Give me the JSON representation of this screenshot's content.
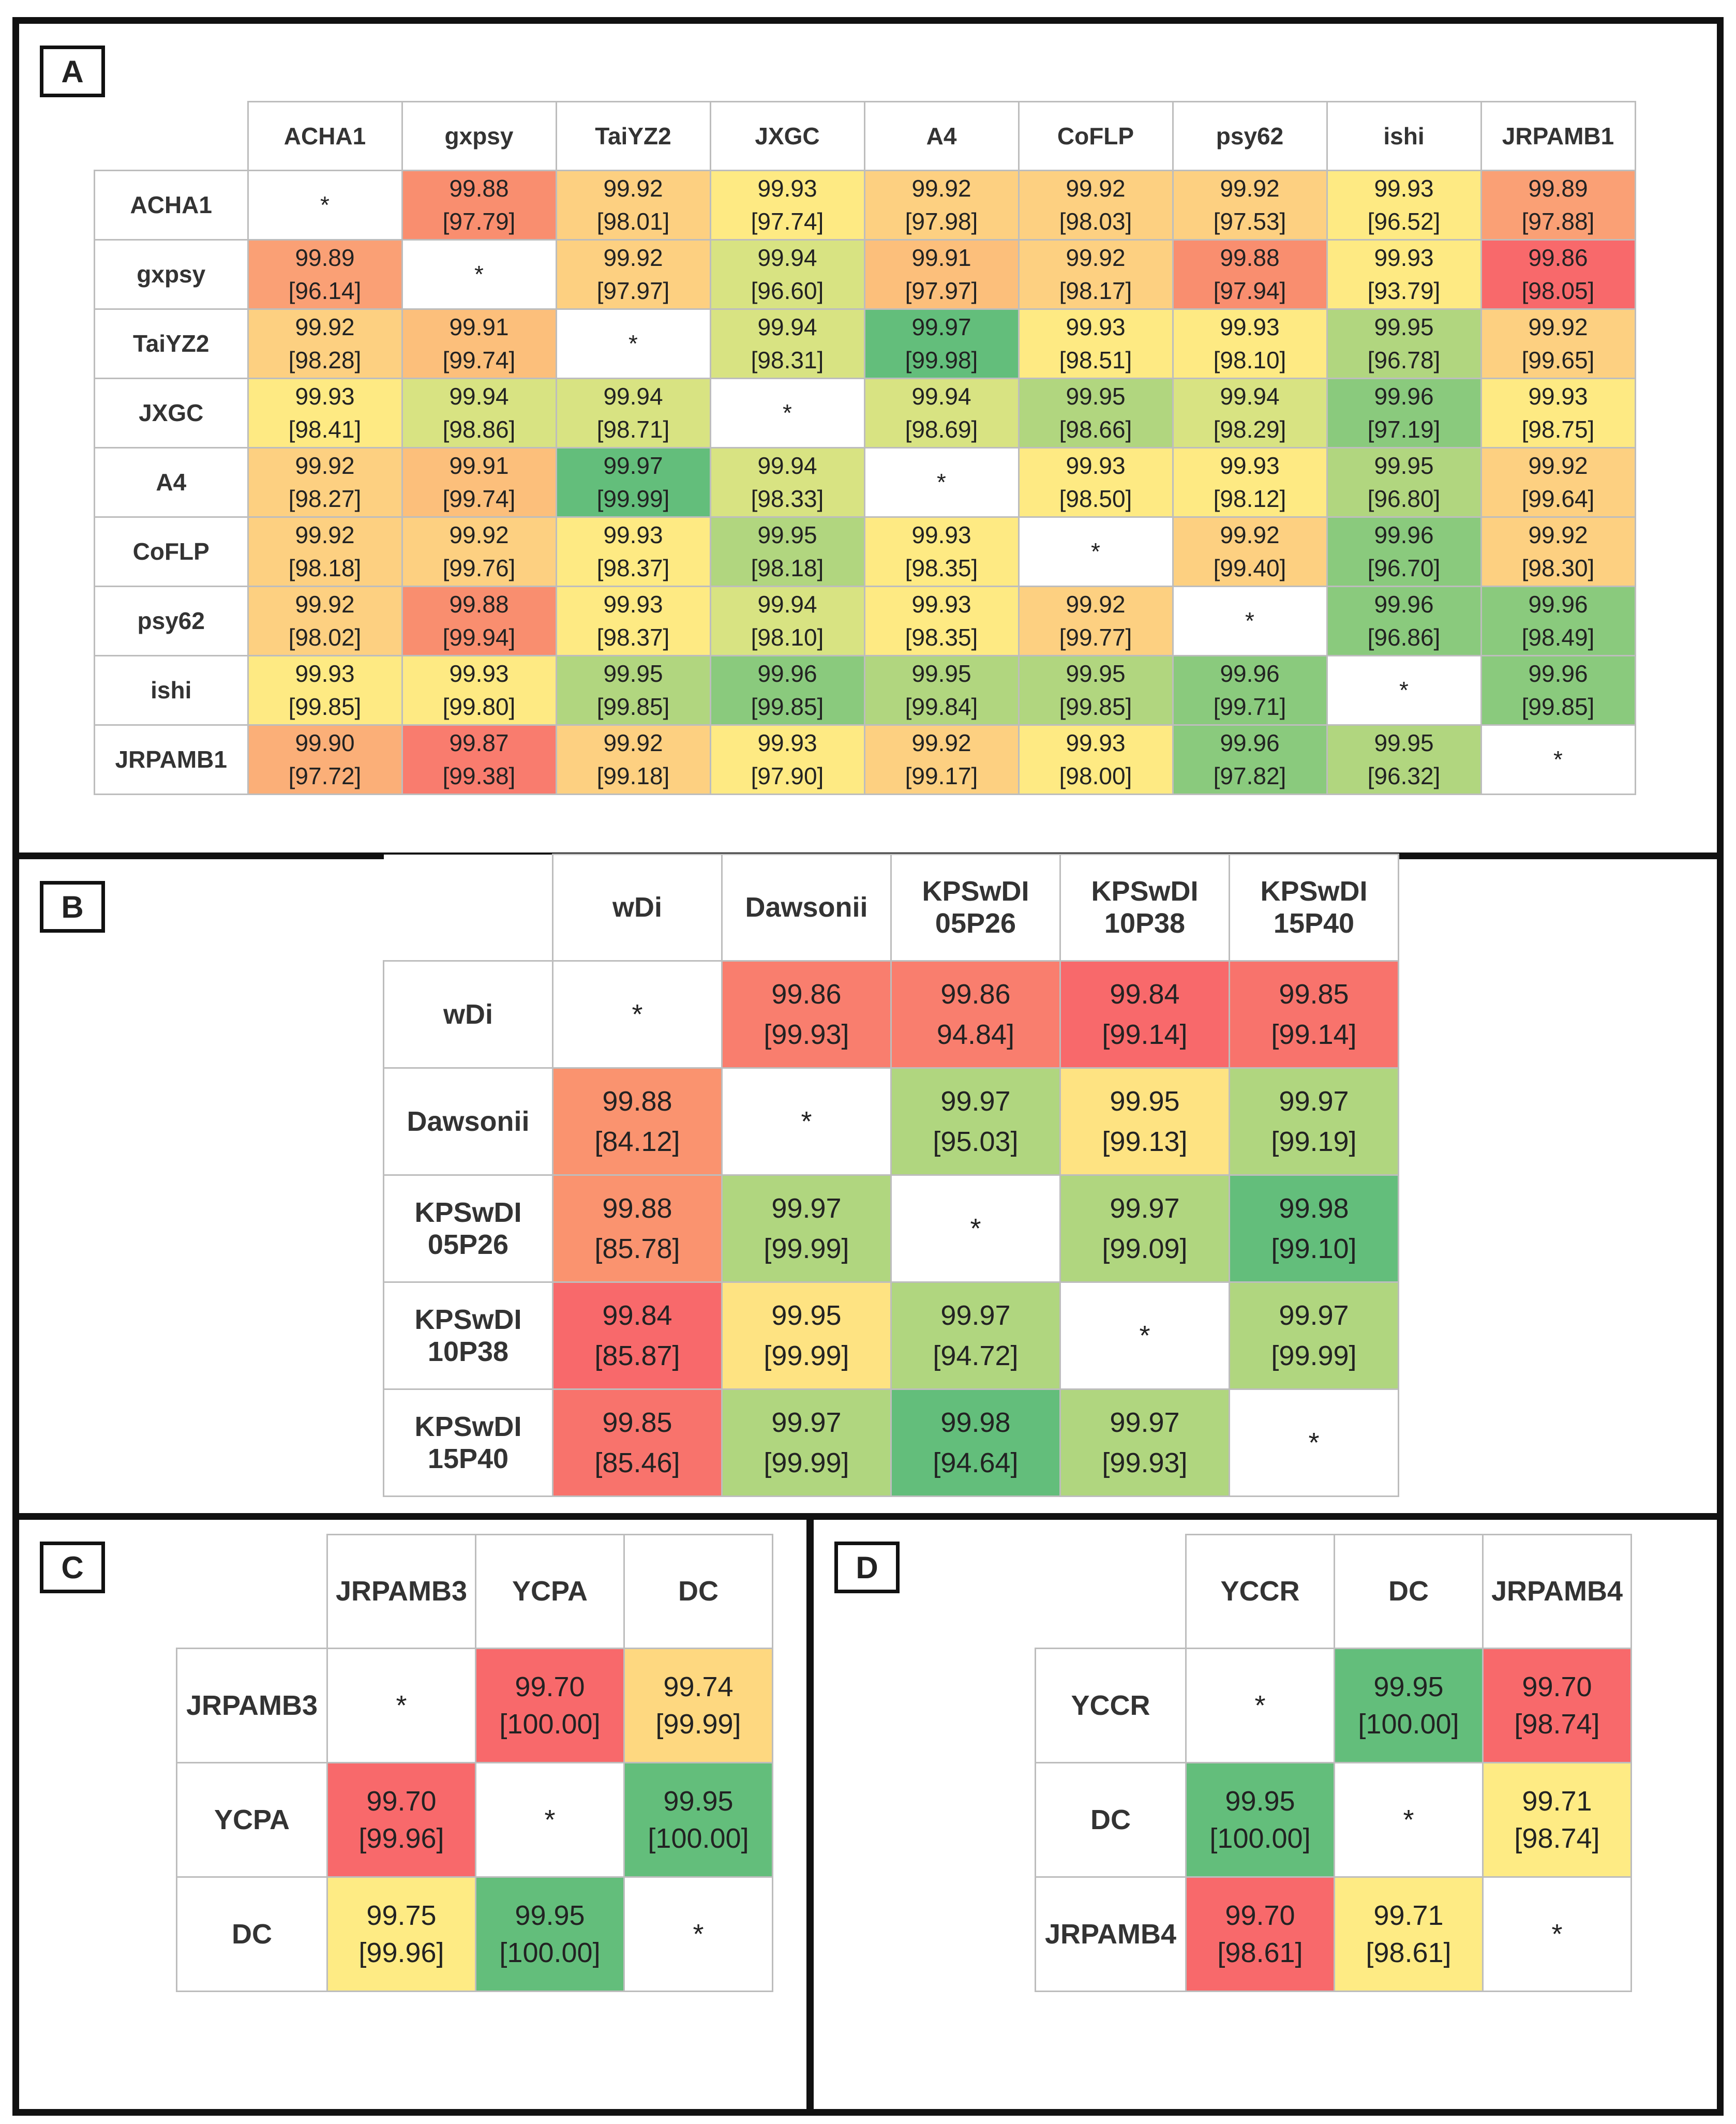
{
  "chart_data": [
    {
      "type": "heatmap",
      "panel": "A",
      "labels": [
        "ACHA1",
        "gxpsy",
        "TaiYZ2",
        "JXGC",
        "A4",
        "CoFLP",
        "psy62",
        "ishi",
        "JRPAMB1"
      ],
      "values": [
        [
          "*",
          "99.88",
          "99.92",
          "99.93",
          "99.92",
          "99.92",
          "99.92",
          "99.93",
          "99.89"
        ],
        [
          "99.89",
          "*",
          "99.92",
          "99.94",
          "99.91",
          "99.92",
          "99.88",
          "99.93",
          "99.86"
        ],
        [
          "99.92",
          "99.91",
          "*",
          "99.94",
          "99.97",
          "99.93",
          "99.93",
          "99.95",
          "99.92"
        ],
        [
          "99.93",
          "99.94",
          "99.94",
          "*",
          "99.94",
          "99.95",
          "99.94",
          "99.96",
          "99.93"
        ],
        [
          "99.92",
          "99.91",
          "99.97",
          "99.94",
          "*",
          "99.93",
          "99.93",
          "99.95",
          "99.92"
        ],
        [
          "99.92",
          "99.92",
          "99.93",
          "99.95",
          "99.93",
          "*",
          "99.92",
          "99.96",
          "99.92"
        ],
        [
          "99.92",
          "99.88",
          "99.93",
          "99.94",
          "99.93",
          "99.92",
          "*",
          "99.96",
          "99.96"
        ],
        [
          "99.93",
          "99.93",
          "99.95",
          "99.96",
          "99.95",
          "99.95",
          "99.96",
          "*",
          "99.96"
        ],
        [
          "99.90",
          "99.87",
          "99.92",
          "99.93",
          "99.92",
          "99.93",
          "99.96",
          "99.95",
          "*"
        ]
      ],
      "secondary": [
        [
          "",
          "[97.79]",
          "[98.01]",
          "[97.74]",
          "[97.98]",
          "[98.03]",
          "[97.53]",
          "[96.52]",
          "[97.88]"
        ],
        [
          "[96.14]",
          "",
          "[97.97]",
          "[96.60]",
          "[97.97]",
          "[98.17]",
          "[97.94]",
          "[93.79]",
          "[98.05]"
        ],
        [
          "[98.28]",
          "[99.74]",
          "",
          "[98.31]",
          "[99.98]",
          "[98.51]",
          "[98.10]",
          "[96.78]",
          "[99.65]"
        ],
        [
          "[98.41]",
          "[98.86]",
          "[98.71]",
          "",
          "[98.69]",
          "[98.66]",
          "[98.29]",
          "[97.19]",
          "[98.75]"
        ],
        [
          "[98.27]",
          "[99.74]",
          "[99.99]",
          "[98.33]",
          "",
          "[98.50]",
          "[98.12]",
          "[96.80]",
          "[99.64]"
        ],
        [
          "[98.18]",
          "[99.76]",
          "[98.37]",
          "[98.18]",
          "[98.35]",
          "",
          "[99.40]",
          "[96.70]",
          "[98.30]"
        ],
        [
          "[98.02]",
          "[99.94]",
          "[98.37]",
          "[98.10]",
          "[98.35]",
          "[99.77]",
          "",
          "[96.86]",
          "[98.49]"
        ],
        [
          "[99.85]",
          "[99.80]",
          "[99.85]",
          "[99.85]",
          "[99.84]",
          "[99.85]",
          "[99.71]",
          "",
          "[99.85]"
        ],
        [
          "[97.72]",
          "[99.38]",
          "[99.18]",
          "[97.90]",
          "[99.17]",
          "[98.00]",
          "[97.82]",
          "[96.32]",
          ""
        ]
      ],
      "colors": [
        [
          "#ffffff",
          "#f98e6f",
          "#fdd081",
          "#feea83",
          "#fdd081",
          "#fdd081",
          "#fdd081",
          "#feea83",
          "#faa075"
        ],
        [
          "#faa075",
          "#ffffff",
          "#fdd081",
          "#d8e382",
          "#fcbf7b",
          "#fdd081",
          "#f98e6f",
          "#feea83",
          "#f8696b"
        ],
        [
          "#fdd081",
          "#fcbf7b",
          "#ffffff",
          "#d8e382",
          "#63be7b",
          "#feea83",
          "#feea83",
          "#b1d67f",
          "#fdd081"
        ],
        [
          "#feea83",
          "#d8e382",
          "#d8e382",
          "#ffffff",
          "#d8e382",
          "#b1d67f",
          "#d8e382",
          "#8aca7d",
          "#feea83"
        ],
        [
          "#fdd081",
          "#fcbf7b",
          "#63be7b",
          "#d8e382",
          "#ffffff",
          "#feea83",
          "#feea83",
          "#b1d67f",
          "#fdd081"
        ],
        [
          "#fdd081",
          "#fdd081",
          "#feea83",
          "#b1d67f",
          "#feea83",
          "#ffffff",
          "#fdd081",
          "#8aca7d",
          "#fdd081"
        ],
        [
          "#fdd081",
          "#f98e6f",
          "#feea83",
          "#d8e382",
          "#feea83",
          "#fdd081",
          "#ffffff",
          "#8aca7d",
          "#8aca7d"
        ],
        [
          "#feea83",
          "#feea83",
          "#b1d67f",
          "#8aca7d",
          "#b1d67f",
          "#b1d67f",
          "#8aca7d",
          "#ffffff",
          "#8aca7d"
        ],
        [
          "#fbaf78",
          "#f97c6e",
          "#fdd081",
          "#feea83",
          "#fdd081",
          "#feea83",
          "#8aca7d",
          "#b1d67f",
          "#ffffff"
        ]
      ]
    },
    {
      "type": "heatmap",
      "panel": "B",
      "labels": [
        "wDi",
        "Dawsonii",
        "KPSwDI\n05P26",
        "KPSwDI\n10P38",
        "KPSwDI\n15P40"
      ],
      "values": [
        [
          "*",
          "99.86",
          "99.86",
          "99.84",
          "99.85"
        ],
        [
          "99.88",
          "*",
          "99.97",
          "99.95",
          "99.97"
        ],
        [
          "99.88",
          "99.97",
          "*",
          "99.97",
          "99.98"
        ],
        [
          "99.84",
          "99.95",
          "99.97",
          "*",
          "99.97"
        ],
        [
          "99.85",
          "99.97",
          "99.98",
          "99.97",
          "*"
        ]
      ],
      "secondary": [
        [
          "",
          "[99.93]",
          "94.84]",
          "[99.14]",
          "[99.14]"
        ],
        [
          "[84.12]",
          "",
          "[95.03]",
          "[99.13]",
          "[99.19]"
        ],
        [
          "[85.78]",
          "[99.99]",
          "",
          "[99.09]",
          "[99.10]"
        ],
        [
          "[85.87]",
          "[99.99]",
          "[94.72]",
          "",
          "[99.99]"
        ],
        [
          "[85.46]",
          "[99.99]",
          "[94.64]",
          "[99.93]",
          ""
        ]
      ],
      "colors": [
        [
          "#ffffff",
          "#f97e6e",
          "#f97e6e",
          "#f8696b",
          "#f8736c"
        ],
        [
          "#fa936f",
          "#ffffff",
          "#b0d67f",
          "#fee382",
          "#b0d67f"
        ],
        [
          "#fa936f",
          "#b0d67f",
          "#ffffff",
          "#b0d67f",
          "#63be7b"
        ],
        [
          "#f8696b",
          "#fee382",
          "#b0d67f",
          "#ffffff",
          "#b0d67f"
        ],
        [
          "#f8736c",
          "#b0d67f",
          "#63be7b",
          "#b0d67f",
          "#ffffff"
        ]
      ]
    },
    {
      "type": "heatmap",
      "panel": "C",
      "labels": [
        "JRPAMB3",
        "YCPA",
        "DC"
      ],
      "values": [
        [
          "*",
          "99.70",
          "99.74"
        ],
        [
          "99.70",
          "*",
          "99.95"
        ],
        [
          "99.75",
          "99.95",
          "*"
        ]
      ],
      "secondary": [
        [
          "",
          "[100.00]",
          "[99.99]"
        ],
        [
          "[99.96]",
          "",
          "[100.00]"
        ],
        [
          "[99.96]",
          "[100.00]",
          ""
        ]
      ],
      "colors": [
        [
          "#ffffff",
          "#f8696b",
          "#fed880"
        ],
        [
          "#f8696b",
          "#ffffff",
          "#63be7b"
        ],
        [
          "#feeb84",
          "#63be7b",
          "#ffffff"
        ]
      ]
    },
    {
      "type": "heatmap",
      "panel": "D",
      "labels": [
        "YCCR",
        "DC",
        "JRPAMB4"
      ],
      "values": [
        [
          "*",
          "99.95",
          "99.70"
        ],
        [
          "99.95",
          "*",
          "99.71"
        ],
        [
          "99.70",
          "99.71",
          "*"
        ]
      ],
      "secondary": [
        [
          "",
          "[100.00]",
          "[98.74]"
        ],
        [
          "[100.00]",
          "",
          "[98.74]"
        ],
        [
          "[98.61]",
          "[98.61]",
          ""
        ]
      ],
      "colors": [
        [
          "#ffffff",
          "#63be7b",
          "#f8696b"
        ],
        [
          "#63be7b",
          "#ffffff",
          "#feeb84"
        ],
        [
          "#f8696b",
          "#feeb84",
          "#ffffff"
        ]
      ]
    }
  ]
}
